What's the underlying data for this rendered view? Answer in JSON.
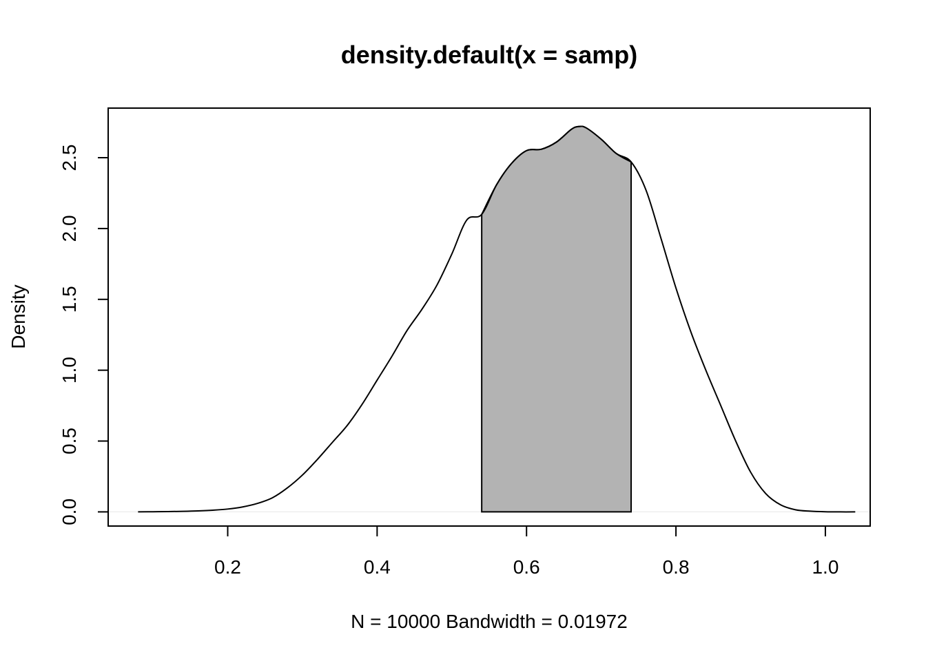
{
  "chart_data": {
    "type": "area",
    "title": "density.default(x = samp)",
    "xlabel": "N = 10000   Bandwidth = 0.01972",
    "ylabel": "Density",
    "xlim": [
      0.04,
      1.06
    ],
    "ylim": [
      -0.1,
      2.85
    ],
    "x_ticks": [
      0.2,
      0.4,
      0.6,
      0.8,
      1.0
    ],
    "x_tick_labels": [
      "0.2",
      "0.4",
      "0.6",
      "0.8",
      "1.0"
    ],
    "y_ticks": [
      0.0,
      0.5,
      1.0,
      1.5,
      2.0,
      2.5
    ],
    "y_tick_labels": [
      "0.0",
      "0.5",
      "1.0",
      "1.5",
      "2.0",
      "2.5"
    ],
    "grid": false,
    "series": [
      {
        "x": [
          0.08,
          0.1,
          0.12,
          0.14,
          0.16,
          0.18,
          0.2,
          0.22,
          0.24,
          0.26,
          0.28,
          0.3,
          0.32,
          0.34,
          0.36,
          0.38,
          0.4,
          0.42,
          0.44,
          0.46,
          0.48,
          0.5,
          0.52,
          0.54,
          0.56,
          0.58,
          0.6,
          0.62,
          0.64,
          0.66,
          0.67,
          0.68,
          0.7,
          0.72,
          0.74,
          0.76,
          0.78,
          0.8,
          0.82,
          0.84,
          0.86,
          0.88,
          0.9,
          0.92,
          0.94,
          0.96,
          0.98,
          1.0,
          1.02,
          1.04
        ],
        "y": [
          0.0,
          0.001,
          0.002,
          0.004,
          0.007,
          0.012,
          0.02,
          0.035,
          0.06,
          0.1,
          0.17,
          0.26,
          0.37,
          0.49,
          0.61,
          0.76,
          0.93,
          1.1,
          1.28,
          1.43,
          1.6,
          1.82,
          2.06,
          2.1,
          2.31,
          2.46,
          2.55,
          2.56,
          2.61,
          2.7,
          2.72,
          2.71,
          2.63,
          2.53,
          2.47,
          2.27,
          1.93,
          1.58,
          1.27,
          1.0,
          0.75,
          0.5,
          0.28,
          0.13,
          0.05,
          0.015,
          0.005,
          0.001,
          0.0,
          0.0
        ]
      }
    ],
    "shaded_region": {
      "from": 0.54,
      "to": 0.74,
      "color": "#b3b3b3"
    },
    "line_color": "#000000",
    "baseline_color": "#eeeeee"
  }
}
